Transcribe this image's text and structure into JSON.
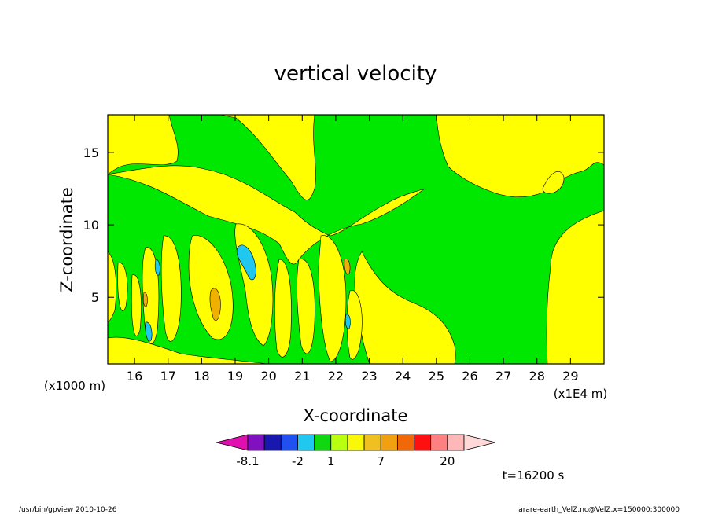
{
  "chart_data": {
    "type": "heatmap",
    "title": "vertical velocity",
    "xlabel": "X-coordinate",
    "ylabel": "Z-coordinate",
    "x_unit_left": "(x1000 m)",
    "x_unit_right": "(x1E4 m)",
    "xlim": [
      15.2,
      30.0
    ],
    "ylim": [
      0.4,
      17.6
    ],
    "x_ticks": [
      "16",
      "17",
      "18",
      "19",
      "20",
      "21",
      "22",
      "23",
      "24",
      "25",
      "26",
      "27",
      "28",
      "29"
    ],
    "x_tick_values": [
      16,
      17,
      18,
      19,
      20,
      21,
      22,
      23,
      24,
      25,
      26,
      27,
      28,
      29
    ],
    "y_ticks": [
      "5",
      "10",
      "15"
    ],
    "y_tick_values": [
      5,
      10,
      15
    ],
    "colorbar": {
      "tick_labels": [
        "-8.1",
        "-2",
        "1",
        "7",
        "20"
      ],
      "tick_bins": [
        1,
        4,
        6,
        9,
        13
      ],
      "bins": [
        {
          "color": "#e010b0"
        },
        {
          "color": "#8010c0"
        },
        {
          "color": "#1818b0"
        },
        {
          "color": "#2050f0"
        },
        {
          "color": "#20c8f0"
        },
        {
          "color": "#10d810"
        },
        {
          "color": "#b8ff10"
        },
        {
          "color": "#f8f808"
        },
        {
          "color": "#f0c020"
        },
        {
          "color": "#f0a010"
        },
        {
          "color": "#f06808"
        },
        {
          "color": "#ff1010"
        },
        {
          "color": "#ff8080"
        },
        {
          "color": "#ffb8b8"
        },
        {
          "color": "#ffd8d8"
        }
      ]
    },
    "regions": [
      {
        "value": "green",
        "color": "#00e800"
      },
      {
        "value": "yellow",
        "color": "#ffff00"
      },
      {
        "value": "orange",
        "color": "#f0b000"
      },
      {
        "value": "cyan",
        "color": "#20c8f0"
      }
    ],
    "time_label": "t=16200 s",
    "footer_left": "/usr/bin/gpview   2010-10-26",
    "footer_right": "arare-earth_VelZ.nc@VelZ,x=150000:300000"
  }
}
